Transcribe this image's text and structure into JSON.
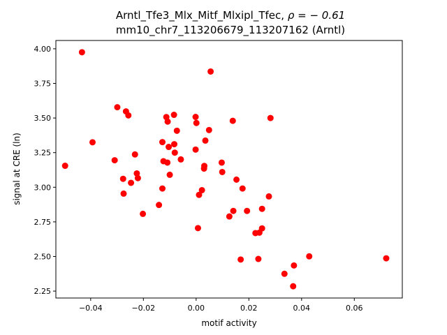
{
  "chart_data": {
    "type": "scatter",
    "title_line1_main": "Arntl_Tfe3_Mlx_Mitf_Mlxipl_Tfec, ",
    "title_line1_rho": "ρ = − 0.61",
    "title_line2": "mm10_chr7_113206679_113207162 (Arntl)",
    "xlabel": "motif activity",
    "ylabel": "signal at CRE (ln)",
    "xlim": [
      -0.0532,
      0.0782
    ],
    "ylim": [
      2.2,
      4.06
    ],
    "xticks": [
      -0.04,
      -0.02,
      0.0,
      0.02,
      0.04,
      0.06
    ],
    "xtick_labels": [
      "−0.04",
      "−0.02",
      "0.00",
      "0.02",
      "0.04",
      "0.06"
    ],
    "yticks": [
      2.25,
      2.5,
      2.75,
      3.0,
      3.25,
      3.5,
      3.75,
      4.0
    ],
    "ytick_labels": [
      "2.25",
      "2.50",
      "2.75",
      "3.00",
      "3.25",
      "3.50",
      "3.75",
      "4.00"
    ],
    "marker_color": "#ff0000",
    "grid": false,
    "points": [
      [
        -0.0497,
        3.155
      ],
      [
        -0.0433,
        3.975
      ],
      [
        -0.0393,
        3.325
      ],
      [
        -0.0309,
        3.195
      ],
      [
        -0.0299,
        3.578
      ],
      [
        -0.0277,
        3.061
      ],
      [
        -0.0275,
        2.954
      ],
      [
        -0.0266,
        3.548
      ],
      [
        -0.0257,
        3.519
      ],
      [
        -0.0247,
        3.032
      ],
      [
        -0.0232,
        3.237
      ],
      [
        -0.0225,
        3.1
      ],
      [
        -0.0221,
        3.066
      ],
      [
        -0.0202,
        2.808
      ],
      [
        -0.0141,
        2.872
      ],
      [
        -0.0128,
        3.326
      ],
      [
        -0.0128,
        2.991
      ],
      [
        -0.0124,
        3.188
      ],
      [
        -0.0113,
        3.507
      ],
      [
        -0.0109,
        3.178
      ],
      [
        -0.0108,
        3.474
      ],
      [
        -0.0104,
        3.291
      ],
      [
        -0.01,
        3.09
      ],
      [
        -0.0084,
        3.523
      ],
      [
        -0.0083,
        3.311
      ],
      [
        -0.0081,
        3.25
      ],
      [
        -0.0073,
        3.408
      ],
      [
        -0.0058,
        3.201
      ],
      [
        -0.0002,
        3.508
      ],
      [
        -0.0002,
        3.272
      ],
      [
        0.0001,
        3.464
      ],
      [
        0.0007,
        2.705
      ],
      [
        0.0011,
        2.945
      ],
      [
        0.0022,
        2.979
      ],
      [
        0.003,
        3.135
      ],
      [
        0.0031,
        3.154
      ],
      [
        0.0035,
        3.337
      ],
      [
        0.0049,
        3.413
      ],
      [
        0.0055,
        3.836
      ],
      [
        0.0097,
        3.178
      ],
      [
        0.0099,
        3.11
      ],
      [
        0.0126,
        2.789
      ],
      [
        0.0139,
        3.48
      ],
      [
        0.0141,
        2.829
      ],
      [
        0.0153,
        3.055
      ],
      [
        0.0169,
        2.478
      ],
      [
        0.0176,
        2.991
      ],
      [
        0.0193,
        2.829
      ],
      [
        0.0225,
        2.669
      ],
      [
        0.0236,
        2.482
      ],
      [
        0.024,
        2.672
      ],
      [
        0.025,
        2.703
      ],
      [
        0.025,
        2.844
      ],
      [
        0.0276,
        2.934
      ],
      [
        0.0282,
        3.5
      ],
      [
        0.0335,
        2.375
      ],
      [
        0.0368,
        2.285
      ],
      [
        0.0371,
        2.435
      ],
      [
        0.0429,
        2.501
      ],
      [
        0.0721,
        2.487
      ]
    ]
  }
}
